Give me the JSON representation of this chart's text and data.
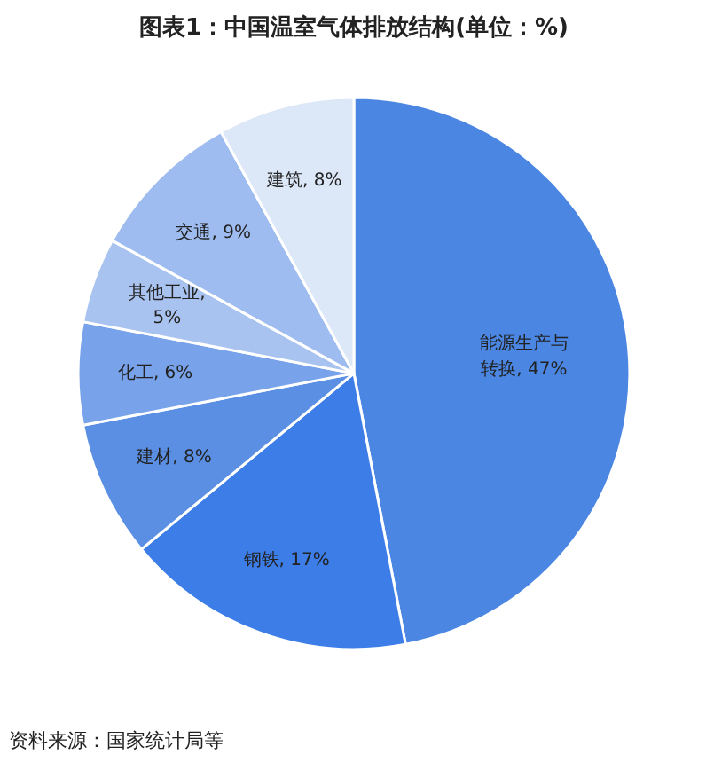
{
  "chart_data": {
    "type": "pie",
    "title": "图表1：中国温室气体排放结构(单位：%)",
    "categories": [
      "能源生产与转换",
      "钢铁",
      "建材",
      "化工",
      "其他工业",
      "交通",
      "建筑"
    ],
    "values": [
      47,
      17,
      8,
      6,
      5,
      9,
      8
    ],
    "colors": [
      "#4a86e2",
      "#3d7de8",
      "#5a8fe3",
      "#78a3ea",
      "#a9c3f0",
      "#9ebcef",
      "#dce7f8"
    ],
    "value_labels": [
      ", 47%",
      ", 17%",
      ", 8%",
      ", 6%",
      ", 5%",
      ", 9%",
      ", 8%"
    ],
    "annotations": [
      "资料来源：国家统计局等"
    ]
  }
}
